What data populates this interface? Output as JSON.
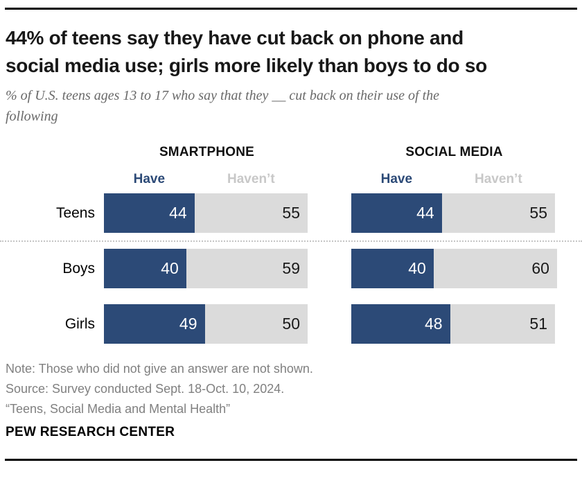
{
  "header": {
    "title_lines": [
      "44% of teens say they have cut back on phone and",
      "social media use; girls more likely than boys to do so"
    ],
    "subtitle_lines": [
      "% of U.S. teens ages 13 to 17 who say that they __ cut back on their use of the",
      "following"
    ]
  },
  "chart_data": {
    "type": "bar",
    "variant": "horizontal-stacked-paired",
    "unit": "percent",
    "xlim": [
      0,
      100
    ],
    "grid": false,
    "legend_position": "above-bars",
    "groups": [
      "SMARTPHONE",
      "SOCIAL MEDIA"
    ],
    "series_names": [
      "Have",
      "Haven’t"
    ],
    "categories": [
      "Teens",
      "Boys",
      "Girls"
    ],
    "series": [
      {
        "group": "SMARTPHONE",
        "name": "Have",
        "values": [
          44,
          40,
          49
        ]
      },
      {
        "group": "SMARTPHONE",
        "name": "Haven’t",
        "values": [
          55,
          59,
          50
        ]
      },
      {
        "group": "SOCIAL MEDIA",
        "name": "Have",
        "values": [
          44,
          40,
          48
        ]
      },
      {
        "group": "SOCIAL MEDIA",
        "name": "Haven’t",
        "values": [
          55,
          60,
          51
        ]
      }
    ],
    "rows": [
      {
        "label": "Teens",
        "smartphone": {
          "have": 44,
          "havent": 55
        },
        "social_media": {
          "have": 44,
          "havent": 55
        }
      },
      {
        "label": "Boys",
        "smartphone": {
          "have": 40,
          "havent": 59
        },
        "social_media": {
          "have": 40,
          "havent": 60
        }
      },
      {
        "label": "Girls",
        "smartphone": {
          "have": 49,
          "havent": 50
        },
        "social_media": {
          "have": 48,
          "havent": 51
        }
      }
    ],
    "colors": {
      "have_fill": "#2C4A77",
      "havent_fill": "#DBDBDB",
      "have_label": "#2C4A77",
      "havent_label": "#C8C8C8",
      "value_on_have": "#FFFFFF",
      "value_on_havent": "#1A1A1A"
    }
  },
  "footer": {
    "note": "Note: Those who did not give an answer are not shown.",
    "source": "Source: Survey conducted Sept. 18-Oct. 10, 2024.",
    "report": "“Teens, Social Media and Mental Health”",
    "brand": "PEW RESEARCH CENTER"
  }
}
